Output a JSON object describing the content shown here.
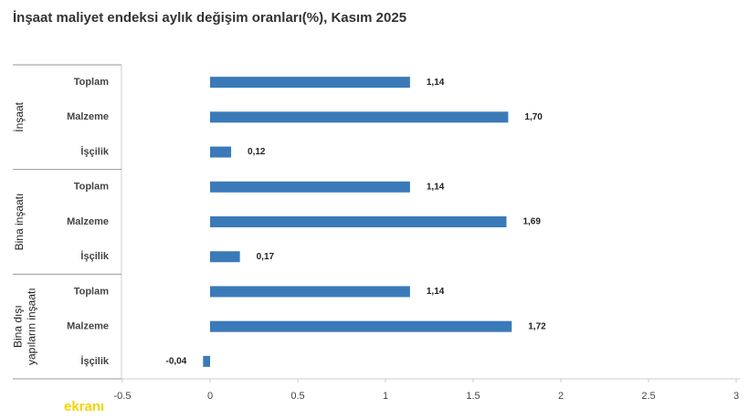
{
  "chart_data": {
    "type": "bar",
    "orientation": "horizontal",
    "title": "İnşaat maliyet endeksi aylık değişim oranları(%), Kasım 2025",
    "color": "#3a7ab8",
    "groups": [
      {
        "label": [
          "İnşaat"
        ],
        "categories": [
          "Toplam",
          "Malzeme",
          "İşçilik"
        ],
        "values": [
          1.14,
          1.7,
          0.12
        ],
        "value_labels": [
          "1,14",
          "1,70",
          "0,12"
        ]
      },
      {
        "label": [
          "Bina inşaatı"
        ],
        "categories": [
          "Toplam",
          "Malzeme",
          "İşçilik"
        ],
        "values": [
          1.14,
          1.69,
          0.17
        ],
        "value_labels": [
          "1,14",
          "1,69",
          "0,17"
        ]
      },
      {
        "label": [
          "Bina dışı",
          "yapıların inşaatı"
        ],
        "categories": [
          "Toplam",
          "Malzeme",
          "İşçilik"
        ],
        "values": [
          1.14,
          1.72,
          -0.04
        ],
        "value_labels": [
          "1,14",
          "1,72",
          "-0,04"
        ]
      }
    ],
    "xlim": [
      -0.5,
      3
    ],
    "xticks": [
      -0.5,
      0,
      0.5,
      1,
      1.5,
      2,
      2.5,
      3
    ]
  },
  "watermark": "ekranı"
}
